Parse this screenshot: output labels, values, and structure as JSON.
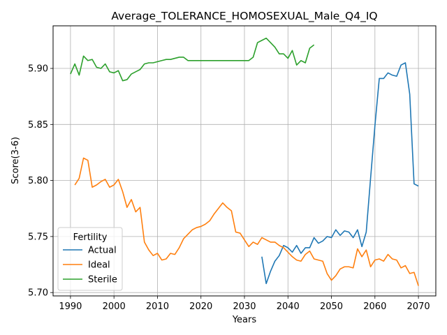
{
  "chart_data": {
    "type": "line",
    "title": "Average_TOLERANCE_HOMOSEXUAL_Male_Q4_IQ",
    "xlabel": "Years",
    "ylabel": "Score(3-6)",
    "xlim": [
      1986,
      2074
    ],
    "ylim": [
      5.697,
      5.938
    ],
    "xticks": [
      1990,
      2000,
      2010,
      2020,
      2030,
      2040,
      2050,
      2060,
      2070
    ],
    "yticks": [
      5.7,
      5.75,
      5.8,
      5.85,
      5.9
    ],
    "ytick_labels": [
      "5.70",
      "5.75",
      "5.80",
      "5.85",
      "5.90"
    ],
    "grid": true,
    "legend": {
      "title": "Fertility",
      "placement": "lower-left"
    },
    "series": [
      {
        "name": "Actual",
        "color": "#1f77b4",
        "x": [
          2034,
          2035,
          2036,
          2037,
          2038,
          2039,
          2040,
          2041,
          2042,
          2043,
          2044,
          2045,
          2046,
          2047,
          2048,
          2049,
          2050,
          2051,
          2052,
          2053,
          2054,
          2055,
          2056,
          2057,
          2058,
          2059,
          2060,
          2061,
          2062,
          2063,
          2064,
          2065,
          2066,
          2067,
          2068,
          2069,
          2070
        ],
        "values": [
          5.732,
          5.708,
          5.719,
          5.728,
          5.733,
          5.742,
          5.74,
          5.736,
          5.742,
          5.735,
          5.74,
          5.74,
          5.749,
          5.744,
          5.746,
          5.75,
          5.749,
          5.756,
          5.751,
          5.755,
          5.754,
          5.749,
          5.756,
          5.741,
          5.754,
          5.802,
          5.849,
          5.891,
          5.891,
          5.896,
          5.894,
          5.893,
          5.903,
          5.905,
          5.877,
          5.797,
          5.795
        ]
      },
      {
        "name": "Ideal",
        "color": "#ff7f0e",
        "x": [
          1991,
          1992,
          1993,
          1994,
          1995,
          1996,
          1997,
          1998,
          1999,
          2000,
          2001,
          2002,
          2003,
          2004,
          2005,
          2006,
          2007,
          2008,
          2009,
          2010,
          2011,
          2012,
          2013,
          2014,
          2015,
          2016,
          2017,
          2018,
          2019,
          2020,
          2021,
          2022,
          2023,
          2024,
          2025,
          2026,
          2027,
          2028,
          2029,
          2030,
          2031,
          2032,
          2033,
          2034,
          2035,
          2036,
          2037,
          2038,
          2039,
          2040,
          2041,
          2042,
          2043,
          2044,
          2045,
          2046,
          2047,
          2048,
          2049,
          2050,
          2051,
          2052,
          2053,
          2054,
          2055,
          2056,
          2057,
          2058,
          2059,
          2060,
          2061,
          2062,
          2063,
          2064,
          2065,
          2066,
          2067,
          2068,
          2069,
          2070
        ],
        "values": [
          5.796,
          5.802,
          5.82,
          5.818,
          5.794,
          5.796,
          5.799,
          5.801,
          5.794,
          5.796,
          5.801,
          5.79,
          5.776,
          5.783,
          5.772,
          5.776,
          5.745,
          5.738,
          5.733,
          5.735,
          5.729,
          5.73,
          5.735,
          5.734,
          5.74,
          5.748,
          5.752,
          5.756,
          5.758,
          5.759,
          5.761,
          5.764,
          5.77,
          5.775,
          5.78,
          5.776,
          5.773,
          5.754,
          5.753,
          5.747,
          5.741,
          5.745,
          5.743,
          5.749,
          5.747,
          5.745,
          5.745,
          5.742,
          5.74,
          5.736,
          5.732,
          5.729,
          5.728,
          5.734,
          5.737,
          5.73,
          5.729,
          5.728,
          5.717,
          5.711,
          5.715,
          5.721,
          5.723,
          5.723,
          5.722,
          5.739,
          5.732,
          5.738,
          5.723,
          5.729,
          5.73,
          5.728,
          5.734,
          5.73,
          5.729,
          5.722,
          5.724,
          5.717,
          5.718,
          5.706
        ]
      },
      {
        "name": "Sterile",
        "color": "#2ca02c",
        "x": [
          1990,
          1991,
          1992,
          1993,
          1994,
          1995,
          1996,
          1997,
          1998,
          1999,
          2000,
          2001,
          2002,
          2003,
          2004,
          2005,
          2006,
          2007,
          2008,
          2009,
          2010,
          2011,
          2012,
          2013,
          2014,
          2015,
          2016,
          2017,
          2018,
          2019,
          2020,
          2021,
          2022,
          2023,
          2024,
          2025,
          2026,
          2027,
          2028,
          2029,
          2030,
          2031,
          2032,
          2033,
          2034,
          2035,
          2036,
          2037,
          2038,
          2039,
          2040,
          2041,
          2042,
          2043,
          2044,
          2045,
          2046
        ],
        "values": [
          5.895,
          5.904,
          5.894,
          5.911,
          5.907,
          5.908,
          5.901,
          5.9,
          5.904,
          5.897,
          5.896,
          5.898,
          5.889,
          5.89,
          5.895,
          5.897,
          5.899,
          5.904,
          5.905,
          5.905,
          5.906,
          5.907,
          5.908,
          5.908,
          5.909,
          5.91,
          5.91,
          5.907,
          5.907,
          5.907,
          5.907,
          5.907,
          5.907,
          5.907,
          5.907,
          5.907,
          5.907,
          5.907,
          5.907,
          5.907,
          5.907,
          5.907,
          5.91,
          5.923,
          5.925,
          5.927,
          5.923,
          5.919,
          5.913,
          5.913,
          5.909,
          5.916,
          5.903,
          5.907,
          5.905,
          5.918,
          5.921
        ]
      }
    ]
  }
}
